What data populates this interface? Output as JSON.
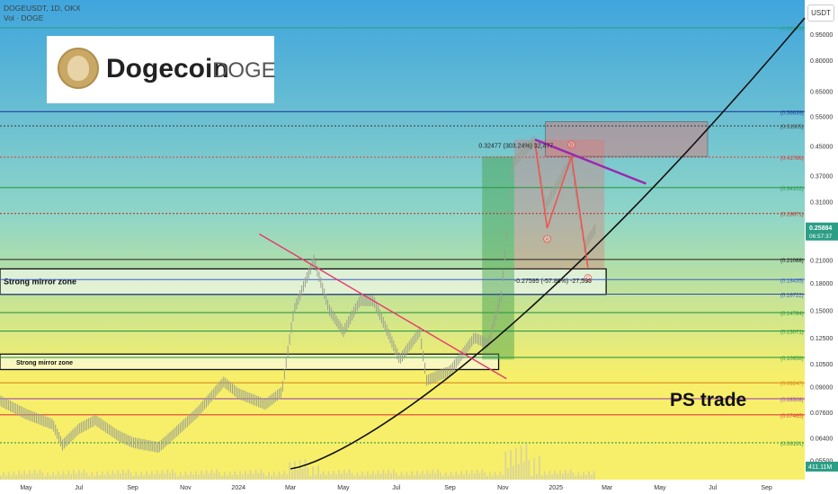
{
  "header": {
    "title": "DOGEUSDT, 1D, OKX",
    "volume_label": "Vol · DOGE"
  },
  "logo": {
    "name": "Dogecoin",
    "ticker": "DOGE"
  },
  "watermark": "PS trade",
  "axis_unit": "USDT",
  "price_scale": {
    "ticks": [
      "0.95000",
      "0.80000",
      "0.65000",
      "0.55000",
      "0.45000",
      "0.37000",
      "0.31000",
      "0.21000",
      "0.18000",
      "0.15000",
      "0.12500",
      "0.10500",
      "0.09000",
      "0.07600",
      "0.06400",
      "0.05500"
    ],
    "current_price": "0.25884",
    "countdown": "06:57:37",
    "volume_value": "411.11M"
  },
  "time_axis": [
    "May",
    "Jul",
    "Sep",
    "Nov",
    "2024",
    "Mar",
    "May",
    "Jul",
    "Sep",
    "Nov",
    "2025",
    "Mar",
    "May",
    "Jul",
    "Sep"
  ],
  "levels": [
    {
      "label": "(0.99193)",
      "color": "#2ba090",
      "style": "solid"
    },
    {
      "label": "(0.56639)",
      "color": "#1f3f9f",
      "style": "solid"
    },
    {
      "label": "(0.51505)",
      "color": "#444444",
      "style": "dotted"
    },
    {
      "label": "(0.41786)",
      "color": "#e23b3b",
      "style": "dotted"
    },
    {
      "label": "(0.34102)",
      "color": "#2e9a45",
      "style": "solid"
    },
    {
      "label": "(0.28671)",
      "color": "#c0392b",
      "style": "dotted"
    },
    {
      "label": "(0.21088)",
      "color": "#222222",
      "style": "solid"
    },
    {
      "label": "(0.18435)",
      "color": "#3a5fcd",
      "style": "solid"
    },
    {
      "label": "(0.16722)",
      "color": "#2d4db5",
      "style": "solid"
    },
    {
      "label": "(0.14784)",
      "color": "#2e9a45",
      "style": "solid"
    },
    {
      "label": "(0.13071)",
      "color": "#2e9a45",
      "style": "solid"
    },
    {
      "label": "(0.10956)",
      "color": "#2e9a45",
      "style": "solid"
    },
    {
      "label": "(0.09247)",
      "color": "#d88a1a",
      "style": "solid"
    },
    {
      "label": "(0.08308)",
      "color": "#a24bb0",
      "style": "solid"
    },
    {
      "label": "(0.07465)",
      "color": "#e23b3b",
      "style": "solid"
    },
    {
      "label": "(0.06191)",
      "color": "#2e9a45",
      "style": "dotted"
    }
  ],
  "zones": [
    {
      "label": "Strong mirror zone"
    },
    {
      "label": "Strong mirror zone"
    }
  ],
  "measure_up": "0.32477 (303.24%) 32,477",
  "measure_down": "-0.27595 (-57.86%) -27,595",
  "pattern_points": [
    "A",
    "B",
    "C"
  ],
  "colors": {
    "bg_top": "#3fa5dd",
    "bg_mid": "#8fd6c8",
    "bg_bottom": "#f7ef6a",
    "candle": "#9aa090",
    "price_tag": "#2c9e86",
    "up_box": "#43a047",
    "down_box": "#e57373",
    "pattern": "#ef5350",
    "trendline": "#9c27b0",
    "red_trendline": "#e8366f",
    "curve": "#111111"
  },
  "chart_data": {
    "type": "line",
    "symbol": "DOGEUSDT",
    "interval": "1D",
    "exchange": "OKX",
    "y_scale": "log",
    "ylim": [
      0.052,
      1.06
    ],
    "x_start": "2023-04-01",
    "x_end": "2025-10-15",
    "last_price": 0.25884,
    "approx_close_series": [
      [
        "2023-04-01",
        0.082
      ],
      [
        "2023-05-01",
        0.075
      ],
      [
        "2023-06-01",
        0.07
      ],
      [
        "2023-06-12",
        0.061
      ],
      [
        "2023-07-01",
        0.068
      ],
      [
        "2023-07-20",
        0.072
      ],
      [
        "2023-08-15",
        0.065
      ],
      [
        "2023-09-01",
        0.062
      ],
      [
        "2023-10-01",
        0.06
      ],
      [
        "2023-10-25",
        0.068
      ],
      [
        "2023-11-15",
        0.076
      ],
      [
        "2023-12-15",
        0.093
      ],
      [
        "2024-01-01",
        0.086
      ],
      [
        "2024-02-01",
        0.08
      ],
      [
        "2024-02-20",
        0.087
      ],
      [
        "2024-03-05",
        0.15
      ],
      [
        "2024-03-28",
        0.21
      ],
      [
        "2024-04-15",
        0.15
      ],
      [
        "2024-05-01",
        0.13
      ],
      [
        "2024-05-20",
        0.16
      ],
      [
        "2024-06-05",
        0.16
      ],
      [
        "2024-07-05",
        0.108
      ],
      [
        "2024-07-28",
        0.13
      ],
      [
        "2024-08-05",
        0.094
      ],
      [
        "2024-09-01",
        0.1
      ],
      [
        "2024-09-29",
        0.125
      ],
      [
        "2024-10-15",
        0.12
      ],
      [
        "2024-10-30",
        0.165
      ],
      [
        "2024-11-12",
        0.4
      ],
      [
        "2024-12-08",
        0.47
      ],
      [
        "2024-12-20",
        0.3
      ],
      [
        "2025-01-18",
        0.41
      ],
      [
        "2025-02-03",
        0.23
      ],
      [
        "2025-02-15",
        0.258
      ]
    ],
    "volume_last": "411.11M"
  }
}
